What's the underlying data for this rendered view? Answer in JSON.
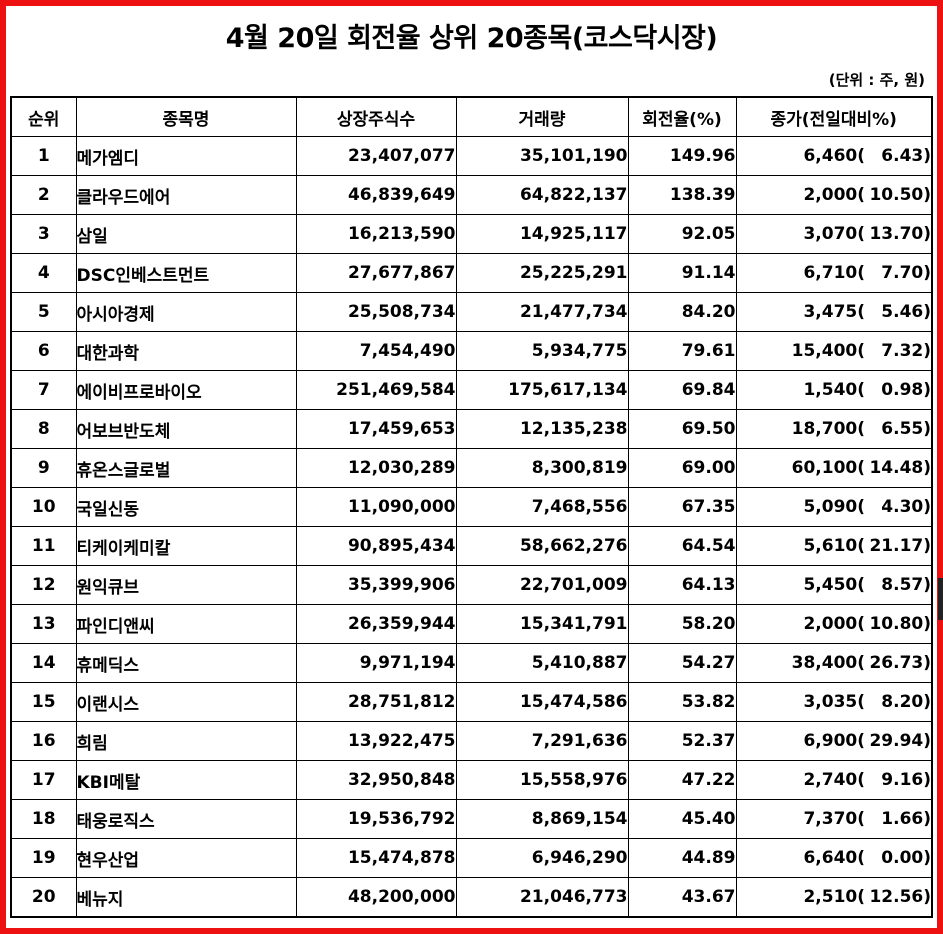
{
  "page": {
    "title": "4월 20일 회전율 상위 20종목(코스닥시장)",
    "unit_note": "(단위 : 주, 원)",
    "border_color": "#ee1111"
  },
  "chart_data": {
    "type": "table",
    "title": "4월 20일 회전율 상위 20종목(코스닥시장)",
    "unit_note": "(단위 : 주, 원)",
    "columns": [
      "순위",
      "종목명",
      "상장주식수",
      "거래량",
      "회전율(%)",
      "종가(전일대비%)"
    ],
    "rows": [
      {
        "rank": "1",
        "name": "메가엠디",
        "shares": "23,407,077",
        "volume": "35,101,190",
        "turnover": "149.96",
        "close_price": "6,460(",
        "change_pct": "6.43)"
      },
      {
        "rank": "2",
        "name": "클라우드에어",
        "shares": "46,839,649",
        "volume": "64,822,137",
        "turnover": "138.39",
        "close_price": "2,000(",
        "change_pct": "10.50)"
      },
      {
        "rank": "3",
        "name": "삼일",
        "shares": "16,213,590",
        "volume": "14,925,117",
        "turnover": "92.05",
        "close_price": "3,070(",
        "change_pct": "13.70)"
      },
      {
        "rank": "4",
        "name": "DSC인베스트먼트",
        "shares": "27,677,867",
        "volume": "25,225,291",
        "turnover": "91.14",
        "close_price": "6,710(",
        "change_pct": "7.70)"
      },
      {
        "rank": "5",
        "name": "아시아경제",
        "shares": "25,508,734",
        "volume": "21,477,734",
        "turnover": "84.20",
        "close_price": "3,475(",
        "change_pct": "5.46)"
      },
      {
        "rank": "6",
        "name": "대한과학",
        "shares": "7,454,490",
        "volume": "5,934,775",
        "turnover": "79.61",
        "close_price": "15,400(",
        "change_pct": "7.32)"
      },
      {
        "rank": "7",
        "name": "에이비프로바이오",
        "shares": "251,469,584",
        "volume": "175,617,134",
        "turnover": "69.84",
        "close_price": "1,540(",
        "change_pct": "0.98)"
      },
      {
        "rank": "8",
        "name": "어보브반도체",
        "shares": "17,459,653",
        "volume": "12,135,238",
        "turnover": "69.50",
        "close_price": "18,700(",
        "change_pct": "6.55)"
      },
      {
        "rank": "9",
        "name": "휴온스글로벌",
        "shares": "12,030,289",
        "volume": "8,300,819",
        "turnover": "69.00",
        "close_price": "60,100(",
        "change_pct": "14.48)"
      },
      {
        "rank": "10",
        "name": "국일신동",
        "shares": "11,090,000",
        "volume": "7,468,556",
        "turnover": "67.35",
        "close_price": "5,090(",
        "change_pct": "4.30)"
      },
      {
        "rank": "11",
        "name": "티케이케미칼",
        "shares": "90,895,434",
        "volume": "58,662,276",
        "turnover": "64.54",
        "close_price": "5,610(",
        "change_pct": "21.17)"
      },
      {
        "rank": "12",
        "name": "원익큐브",
        "shares": "35,399,906",
        "volume": "22,701,009",
        "turnover": "64.13",
        "close_price": "5,450(",
        "change_pct": "8.57)"
      },
      {
        "rank": "13",
        "name": "파인디앤씨",
        "shares": "26,359,944",
        "volume": "15,341,791",
        "turnover": "58.20",
        "close_price": "2,000(",
        "change_pct": "10.80)"
      },
      {
        "rank": "14",
        "name": "휴메딕스",
        "shares": "9,971,194",
        "volume": "5,410,887",
        "turnover": "54.27",
        "close_price": "38,400(",
        "change_pct": "26.73)"
      },
      {
        "rank": "15",
        "name": "이랜시스",
        "shares": "28,751,812",
        "volume": "15,474,586",
        "turnover": "53.82",
        "close_price": "3,035(",
        "change_pct": "8.20)"
      },
      {
        "rank": "16",
        "name": "희림",
        "shares": "13,922,475",
        "volume": "7,291,636",
        "turnover": "52.37",
        "close_price": "6,900(",
        "change_pct": "29.94)"
      },
      {
        "rank": "17",
        "name": "KBI메탈",
        "shares": "32,950,848",
        "volume": "15,558,976",
        "turnover": "47.22",
        "close_price": "2,740(",
        "change_pct": "9.16)"
      },
      {
        "rank": "18",
        "name": "태웅로직스",
        "shares": "19,536,792",
        "volume": "8,869,154",
        "turnover": "45.40",
        "close_price": "7,370(",
        "change_pct": "1.66)"
      },
      {
        "rank": "19",
        "name": "현우산업",
        "shares": "15,474,878",
        "volume": "6,946,290",
        "turnover": "44.89",
        "close_price": "6,640(",
        "change_pct": "0.00)"
      },
      {
        "rank": "20",
        "name": "베뉴지",
        "shares": "48,200,000",
        "volume": "21,046,773",
        "turnover": "43.67",
        "close_price": "2,510(",
        "change_pct": "12.56)"
      }
    ]
  }
}
